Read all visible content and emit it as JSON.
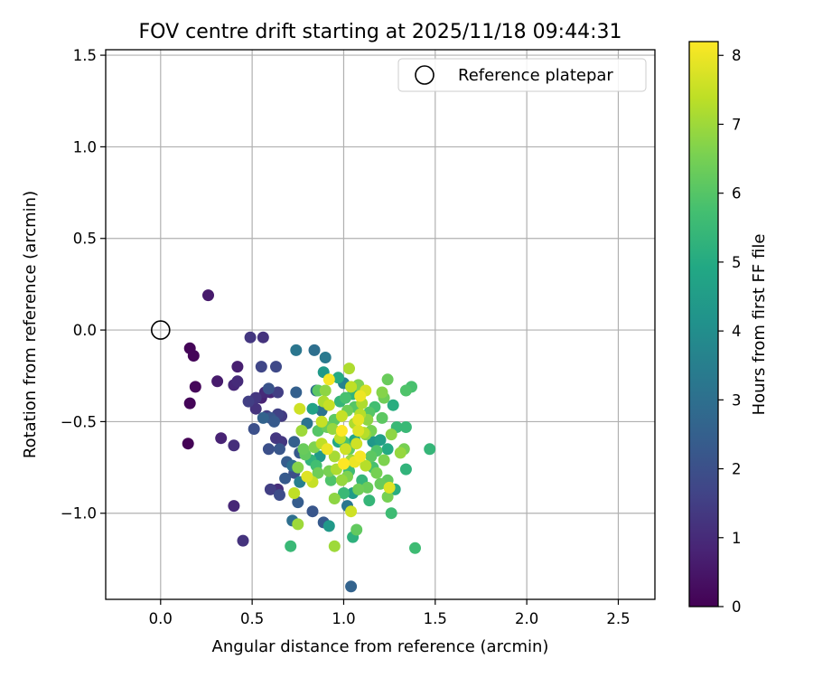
{
  "chart_data": {
    "type": "scatter",
    "title": "FOV centre drift starting at 2025/11/18 09:44:31",
    "xlabel": "Angular distance from reference (arcmin)",
    "ylabel": "Rotation from reference (arcmin)",
    "xlim": [
      -0.3,
      2.7
    ],
    "ylim": [
      -1.47,
      1.53
    ],
    "xticks": [
      0.0,
      0.5,
      1.0,
      1.5,
      2.0,
      2.5
    ],
    "xtick_labels": [
      "0.0",
      "0.5",
      "1.0",
      "1.5",
      "2.0",
      "2.5"
    ],
    "yticks": [
      -1.0,
      -0.5,
      0.0,
      0.5,
      1.0,
      1.5
    ],
    "ytick_labels": [
      "−1.0",
      "−0.5",
      "0.0",
      "0.5",
      "1.0",
      "1.5"
    ],
    "grid": true,
    "legend": {
      "position": "top-right",
      "entries": [
        "Reference platepar"
      ]
    },
    "reference_point": {
      "x": 0.0,
      "y": 0.0,
      "label": "Reference platepar"
    },
    "colorbar": {
      "label": "Hours from first FF file",
      "colormap": "viridis",
      "range": [
        0,
        8.2
      ],
      "ticks": [
        0,
        1,
        2,
        3,
        4,
        5,
        6,
        7,
        8
      ],
      "tick_labels": [
        "0",
        "1",
        "2",
        "3",
        "4",
        "5",
        "6",
        "7",
        "8"
      ]
    },
    "points": [
      [
        0.26,
        0.19,
        0.6
      ],
      [
        0.16,
        -0.1,
        0.1
      ],
      [
        0.18,
        -0.14,
        0.1
      ],
      [
        0.19,
        -0.31,
        0.15
      ],
      [
        0.16,
        -0.4,
        0.1
      ],
      [
        0.15,
        -0.62,
        0.05
      ],
      [
        0.31,
        -0.28,
        0.6
      ],
      [
        0.33,
        -0.59,
        0.8
      ],
      [
        0.4,
        -0.3,
        0.9
      ],
      [
        0.42,
        -0.2,
        0.7
      ],
      [
        0.42,
        -0.28,
        1.0
      ],
      [
        0.4,
        -0.63,
        1.1
      ],
      [
        0.4,
        -0.96,
        0.9
      ],
      [
        0.45,
        -1.15,
        1.2
      ],
      [
        0.49,
        -0.04,
        1.3
      ],
      [
        0.56,
        -0.04,
        1.2
      ],
      [
        0.55,
        -0.2,
        1.7
      ],
      [
        0.52,
        -0.37,
        1.3
      ],
      [
        0.55,
        -0.37,
        0.8
      ],
      [
        0.48,
        -0.39,
        1.5
      ],
      [
        0.52,
        -0.43,
        1.2
      ],
      [
        0.57,
        -0.34,
        1.0
      ],
      [
        0.6,
        -0.34,
        0.9
      ],
      [
        0.63,
        -0.2,
        1.8
      ],
      [
        0.64,
        -0.34,
        1.5
      ],
      [
        0.58,
        -0.47,
        1.5
      ],
      [
        0.56,
        -0.48,
        2.6
      ],
      [
        0.59,
        -0.32,
        2.1
      ],
      [
        0.6,
        -0.48,
        2.2
      ],
      [
        0.62,
        -0.5,
        2.3
      ],
      [
        0.64,
        -0.46,
        1.6
      ],
      [
        0.66,
        -0.47,
        1.4
      ],
      [
        0.51,
        -0.54,
        2.0
      ],
      [
        0.59,
        -0.65,
        2.0
      ],
      [
        0.63,
        -0.59,
        1.3
      ],
      [
        0.66,
        -0.61,
        1.3
      ],
      [
        0.65,
        -0.65,
        2.2
      ],
      [
        0.69,
        -0.72,
        2.4
      ],
      [
        0.6,
        -0.87,
        1.5
      ],
      [
        0.64,
        -0.87,
        1.1
      ],
      [
        0.65,
        -0.9,
        1.9
      ],
      [
        0.68,
        -0.81,
        2.3
      ],
      [
        0.74,
        -0.11,
        3.2
      ],
      [
        0.84,
        -0.11,
        3.0
      ],
      [
        0.9,
        -0.15,
        3.3
      ],
      [
        0.74,
        -0.34,
        2.5
      ],
      [
        0.85,
        -0.33,
        3.0
      ],
      [
        0.8,
        -0.51,
        3.1
      ],
      [
        0.73,
        -0.61,
        2.5
      ],
      [
        0.76,
        -0.67,
        2.3
      ],
      [
        0.72,
        -0.74,
        3.0
      ],
      [
        0.73,
        -0.78,
        2.0
      ],
      [
        0.76,
        -0.83,
        3.5
      ],
      [
        0.75,
        -0.94,
        2.4
      ],
      [
        0.72,
        -1.04,
        3.0
      ],
      [
        0.83,
        -0.99,
        2.2
      ],
      [
        0.89,
        -1.05,
        2.3
      ],
      [
        0.92,
        -1.07,
        4.4
      ],
      [
        0.71,
        -1.18,
        5.5
      ],
      [
        0.75,
        -1.06,
        7.0
      ],
      [
        0.95,
        -1.18,
        7.0
      ],
      [
        1.04,
        -1.4,
        2.6
      ],
      [
        1.05,
        -1.13,
        5.2
      ],
      [
        1.07,
        -1.09,
        6.2
      ],
      [
        1.02,
        -0.96,
        3.2
      ],
      [
        1.14,
        -0.93,
        5.4
      ],
      [
        1.08,
        -0.87,
        6.4
      ],
      [
        1.2,
        -0.84,
        6.3
      ],
      [
        1.24,
        -0.91,
        6.5
      ],
      [
        1.26,
        -1.0,
        5.6
      ],
      [
        1.28,
        -0.87,
        5.1
      ],
      [
        1.24,
        -0.82,
        6.2
      ],
      [
        1.34,
        -0.76,
        5.3
      ],
      [
        1.39,
        -1.19,
        5.6
      ],
      [
        1.47,
        -0.65,
        5.4
      ],
      [
        1.37,
        -0.31,
        5.8
      ],
      [
        1.34,
        -0.33,
        5.9
      ],
      [
        1.34,
        -0.53,
        5.5
      ],
      [
        1.33,
        -0.65,
        6.5
      ],
      [
        1.27,
        -0.41,
        5.1
      ],
      [
        1.24,
        -0.27,
        6.3
      ],
      [
        1.21,
        -0.34,
        6.7
      ],
      [
        1.22,
        -0.37,
        6.4
      ],
      [
        1.26,
        -0.57,
        6.8
      ],
      [
        1.29,
        -0.53,
        5.5
      ],
      [
        1.24,
        -0.65,
        5.0
      ],
      [
        1.22,
        -0.71,
        6.6
      ],
      [
        1.18,
        -0.66,
        5.9
      ],
      [
        1.2,
        -0.6,
        4.6
      ],
      [
        1.16,
        -0.61,
        4.3
      ],
      [
        1.17,
        -0.42,
        5.7
      ],
      [
        1.15,
        -0.55,
        6.5
      ],
      [
        1.13,
        -0.49,
        6.8
      ],
      [
        1.12,
        -0.33,
        7.7
      ],
      [
        1.09,
        -0.36,
        8.0
      ],
      [
        1.09,
        -0.46,
        7.3
      ],
      [
        1.08,
        -0.55,
        7.8
      ],
      [
        1.06,
        -0.51,
        7.2
      ],
      [
        1.06,
        -0.42,
        6.0
      ],
      [
        1.06,
        -0.6,
        4.8
      ],
      [
        1.03,
        -0.65,
        6.2
      ],
      [
        1.03,
        -0.77,
        5.6
      ],
      [
        1.06,
        -0.72,
        8.0
      ],
      [
        1.02,
        -0.8,
        6.6
      ],
      [
        1.0,
        -0.73,
        8.2
      ],
      [
        0.98,
        -0.59,
        7.4
      ],
      [
        0.99,
        -0.55,
        8.2
      ],
      [
        0.99,
        -0.47,
        7.5
      ],
      [
        1.01,
        -0.37,
        5.8
      ],
      [
        1.0,
        -0.29,
        3.6
      ],
      [
        0.97,
        -0.26,
        5.0
      ],
      [
        1.03,
        -0.21,
        7.2
      ],
      [
        0.92,
        -0.27,
        8.1
      ],
      [
        0.9,
        -0.33,
        6.8
      ],
      [
        0.92,
        -0.41,
        7.5
      ],
      [
        0.89,
        -0.39,
        7.2
      ],
      [
        0.86,
        -0.33,
        6.1
      ],
      [
        0.83,
        -0.43,
        4.7
      ],
      [
        0.88,
        -0.44,
        3.1
      ],
      [
        0.88,
        -0.5,
        7.5
      ],
      [
        0.86,
        -0.55,
        6.0
      ],
      [
        0.88,
        -0.62,
        7.4
      ],
      [
        0.84,
        -0.64,
        6.6
      ],
      [
        0.91,
        -0.65,
        8.0
      ],
      [
        0.87,
        -0.69,
        4.4
      ],
      [
        0.82,
        -0.71,
        5.3
      ],
      [
        0.86,
        -0.78,
        6.4
      ],
      [
        0.83,
        -0.83,
        7.5
      ],
      [
        0.8,
        -0.8,
        7.8
      ],
      [
        0.75,
        -0.75,
        6.7
      ],
      [
        0.73,
        -0.89,
        7.4
      ],
      [
        0.78,
        -0.65,
        6.3
      ],
      [
        0.77,
        -0.55,
        7.0
      ],
      [
        0.76,
        -0.43,
        7.6
      ],
      [
        0.92,
        -0.77,
        6.5
      ],
      [
        0.95,
        -0.92,
        6.8
      ],
      [
        0.96,
        -0.76,
        7.2
      ],
      [
        0.99,
        -0.82,
        6.9
      ],
      [
        1.01,
        -0.65,
        7.6
      ],
      [
        1.04,
        -0.71,
        7.0
      ],
      [
        1.09,
        -0.69,
        8.1
      ],
      [
        1.12,
        -0.74,
        7.3
      ],
      [
        1.15,
        -0.69,
        6.1
      ],
      [
        1.18,
        -0.78,
        6.5
      ],
      [
        1.14,
        -0.45,
        6.0
      ],
      [
        1.11,
        -0.56,
        7.3
      ],
      [
        1.1,
        -0.4,
        7.2
      ],
      [
        1.08,
        -0.3,
        6.6
      ],
      [
        1.04,
        -0.31,
        7.4
      ],
      [
        1.02,
        -0.44,
        6.4
      ],
      [
        0.98,
        -0.39,
        5.4
      ],
      [
        0.94,
        -0.54,
        6.9
      ],
      [
        0.95,
        -0.69,
        7.1
      ],
      [
        0.93,
        -0.82,
        5.9
      ],
      [
        1.0,
        -0.89,
        5.5
      ],
      [
        1.05,
        -0.89,
        4.5
      ],
      [
        1.07,
        -0.62,
        7.6
      ],
      [
        1.08,
        -0.49,
        7.9
      ],
      [
        1.12,
        -0.57,
        6.8
      ],
      [
        1.04,
        -0.99,
        7.6
      ],
      [
        0.89,
        -0.23,
        4.4
      ],
      [
        0.95,
        -0.49,
        6.1
      ],
      [
        1.0,
        -0.61,
        5.8
      ],
      [
        1.05,
        -0.35,
        5.3
      ],
      [
        1.16,
        -0.75,
        5.8
      ],
      [
        1.21,
        -0.48,
        6.1
      ],
      [
        1.25,
        -0.86,
        7.8
      ],
      [
        1.31,
        -0.67,
        6.9
      ],
      [
        1.13,
        -0.86,
        6.3
      ],
      [
        1.1,
        -0.82,
        5.4
      ],
      [
        0.97,
        -0.61,
        4.9
      ],
      [
        0.91,
        -0.53,
        6.3
      ],
      [
        0.85,
        -0.74,
        5.7
      ],
      [
        0.79,
        -0.68,
        6.2
      ]
    ]
  }
}
